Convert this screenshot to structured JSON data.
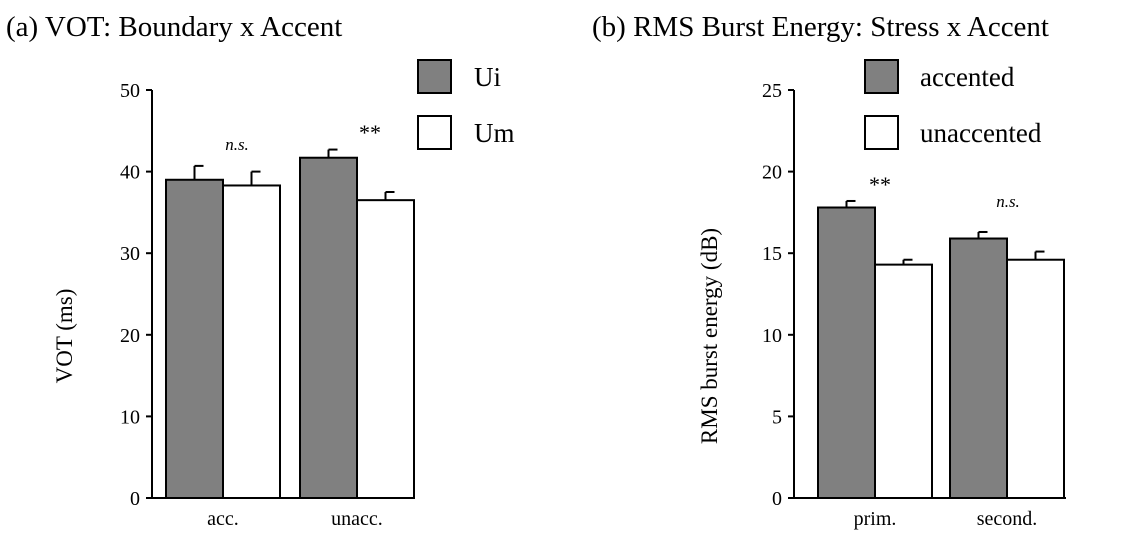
{
  "colors": {
    "filled": "#808080",
    "empty": "#ffffff",
    "stroke": "#000000"
  },
  "chart_data": [
    {
      "type": "bar",
      "title": "(a) VOT: Boundary x Accent",
      "xlabel": "",
      "ylabel": "VOT (ms)",
      "ylim": [
        0,
        50
      ],
      "yticks": [
        0,
        10,
        20,
        30,
        40,
        50
      ],
      "categories": [
        "acc.",
        "unacc."
      ],
      "series": [
        {
          "name": "Ui",
          "color": "#808080",
          "values": [
            39.0,
            41.7
          ],
          "errors": [
            1.7,
            1.0
          ]
        },
        {
          "name": "Um",
          "color": "#ffffff",
          "values": [
            38.3,
            36.5
          ],
          "errors": [
            1.7,
            1.0
          ]
        }
      ],
      "annotations": [
        "n.s.",
        "**"
      ],
      "legend": "top-right"
    },
    {
      "type": "bar",
      "title": "(b) RMS Burst Energy: Stress x Accent",
      "xlabel": "",
      "ylabel": "RMS burst energy (dB)",
      "ylim": [
        0,
        25
      ],
      "yticks": [
        0,
        5,
        10,
        15,
        20,
        25
      ],
      "categories": [
        "prim.",
        "second."
      ],
      "series": [
        {
          "name": "accented",
          "color": "#808080",
          "values": [
            17.8,
            15.9
          ],
          "errors": [
            0.4,
            0.4
          ]
        },
        {
          "name": "unaccented",
          "color": "#ffffff",
          "values": [
            14.3,
            14.6
          ],
          "errors": [
            0.3,
            0.5
          ]
        }
      ],
      "annotations": [
        "**",
        "n.s."
      ],
      "legend": "top-right"
    }
  ]
}
